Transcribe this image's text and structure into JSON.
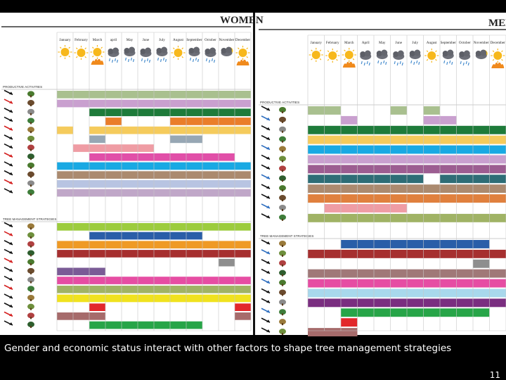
{
  "panels": {
    "women": {
      "title": "WOMEN",
      "months": [
        "January",
        "February",
        "March",
        "april",
        "May",
        "June",
        "July",
        "August",
        "September",
        "October",
        "November",
        "December"
      ]
    },
    "men": {
      "title": "MEN",
      "months": [
        "January",
        "February",
        "March",
        "April",
        "May",
        "June",
        "July",
        "August",
        "September",
        "October",
        "November",
        "December"
      ]
    }
  },
  "section_labels": {
    "productive": "PRODUCTIVE ACTIVITIES",
    "tree": "TREE MANAGEMENT STRATEGIES"
  },
  "weather": [
    "sun",
    "sun",
    "sun-fire",
    "rain",
    "rain",
    "rain",
    "rain",
    "sun",
    "rain",
    "rain",
    "cloud-sun",
    "sun-fire"
  ],
  "women_rows": {
    "productive": [
      {
        "color": "#a9c08f",
        "months": [
          1,
          2,
          3,
          4,
          5,
          6,
          7,
          8,
          9,
          10,
          11,
          12
        ]
      },
      {
        "color": "#c9a0cf",
        "months": [
          1,
          2,
          3,
          4,
          5,
          6,
          7,
          8,
          9,
          10,
          11,
          12
        ]
      },
      {
        "color": "#1e7b3a",
        "months": [
          3,
          4,
          5,
          6,
          7,
          8,
          9,
          10,
          11,
          12
        ]
      },
      {
        "color": "#ea7d2a",
        "months": [
          4,
          8,
          9,
          10,
          11,
          12
        ]
      },
      {
        "color": "#f5cb5c",
        "months": [
          1,
          3,
          4,
          5,
          6,
          7,
          8,
          9,
          10,
          11,
          12
        ]
      },
      {
        "color": "#97a7b4",
        "months": [
          3,
          8,
          9
        ]
      },
      {
        "color": "#ef9ca4",
        "months": [
          2,
          3,
          4,
          5,
          6
        ]
      },
      {
        "color": "#e14fa8",
        "months": [
          3,
          4,
          5,
          6,
          7,
          8,
          9,
          10,
          11
        ]
      },
      {
        "color": "#19a9e3",
        "months": [
          1,
          2,
          3,
          4,
          5,
          6,
          7,
          8,
          9,
          10,
          11,
          12
        ]
      },
      {
        "color": "#ab8a6f",
        "months": [
          1,
          2,
          3,
          4,
          5,
          6,
          7,
          8,
          9,
          10,
          11,
          12
        ]
      },
      {
        "color": "#b8c4e2",
        "months": [
          1,
          2,
          3,
          4,
          5,
          6,
          7,
          8,
          9,
          10,
          11,
          12
        ]
      },
      {
        "color": "#c0a7c8",
        "months": [
          1,
          2,
          3,
          4,
          5,
          6,
          7,
          8,
          9,
          10,
          11,
          12
        ]
      }
    ],
    "tree": [
      {
        "color": "#9ccc3d",
        "months": [
          1,
          2,
          3,
          4,
          5,
          6,
          7,
          8,
          9,
          10,
          11,
          12
        ]
      },
      {
        "color": "#2a5ea8",
        "months": [
          3,
          4,
          5,
          6,
          7,
          8,
          9
        ]
      },
      {
        "color": "#ef9a25",
        "months": [
          1,
          2,
          3,
          4,
          5,
          6,
          7,
          8,
          9,
          10,
          11,
          12
        ]
      },
      {
        "color": "#a62f2f",
        "months": [
          1,
          2,
          3,
          4,
          5,
          6,
          7,
          8,
          9,
          10,
          11,
          12
        ]
      },
      {
        "color": "#8e8e8e",
        "months": [
          11
        ]
      },
      {
        "color": "#7a5b96",
        "months": [
          1,
          2,
          3
        ]
      },
      {
        "color": "#e64da3",
        "months": [
          1,
          2,
          3,
          4,
          5,
          6,
          7,
          8,
          9,
          10,
          11,
          12
        ]
      },
      {
        "color": "#a0b365",
        "months": [
          1,
          2,
          3,
          4,
          5,
          6,
          7,
          8,
          9,
          10,
          11,
          12
        ]
      },
      {
        "color": "#f0e21f",
        "months": [
          1,
          2,
          3,
          4,
          5,
          6,
          7,
          8,
          9,
          10,
          11,
          12
        ]
      },
      {
        "color": "#e2282b",
        "months": [
          3,
          12
        ]
      },
      {
        "color": "#a66b6b",
        "months": [
          1,
          2,
          3,
          12
        ]
      },
      {
        "color": "#27a548",
        "months": [
          3,
          4,
          5,
          6,
          7,
          8,
          9
        ]
      }
    ]
  },
  "men_rows": {
    "productive": [
      {
        "color": "#a9c08f",
        "months": [
          1,
          2,
          6,
          8
        ]
      },
      {
        "color": "#c9a0cf",
        "months": [
          3,
          8,
          9
        ]
      },
      {
        "color": "#1e7b3a",
        "months": [
          1,
          2,
          3,
          4,
          5,
          6,
          7,
          8,
          9,
          10,
          11,
          12
        ]
      },
      {
        "color": "#f5cb5c",
        "months": [
          1,
          2,
          3,
          4,
          5,
          6,
          7,
          8,
          9,
          10,
          11,
          12
        ]
      },
      {
        "color": "#19a9e3",
        "months": [
          1,
          2,
          3,
          4,
          5,
          6,
          7,
          8,
          9,
          10,
          11,
          12
        ]
      },
      {
        "color": "#c9a0cf",
        "months": [
          1,
          2,
          3,
          4,
          5,
          6,
          7,
          8,
          9,
          10,
          11,
          12
        ]
      },
      {
        "color": "#9c5d91",
        "months": [
          1,
          2,
          3,
          4,
          5,
          6,
          7,
          8,
          9,
          10,
          11,
          12
        ]
      },
      {
        "color": "#2e6d76",
        "months": [
          1,
          2,
          3,
          4,
          5,
          6,
          7,
          9,
          10,
          11,
          12
        ]
      },
      {
        "color": "#ab8a6f",
        "months": [
          1,
          2,
          3,
          4,
          5,
          6,
          7,
          8,
          9,
          10,
          11,
          12
        ]
      },
      {
        "color": "#e0803e",
        "months": [
          1,
          2,
          3,
          4,
          5,
          6,
          7,
          8,
          9,
          10,
          11,
          12
        ]
      },
      {
        "color": "#ef9ca4",
        "months": [
          2,
          3,
          4,
          5,
          6
        ]
      },
      {
        "color": "#a0b365",
        "months": [
          1,
          2,
          3,
          4,
          5,
          6,
          7,
          8,
          9,
          10,
          11,
          12
        ]
      }
    ],
    "tree": [
      {
        "color": "#2a5ea8",
        "months": [
          3,
          4,
          5,
          6,
          7,
          8,
          9,
          10,
          11
        ]
      },
      {
        "color": "#a62f2f",
        "months": [
          1,
          2,
          3,
          4,
          5,
          6,
          7,
          8,
          9,
          10,
          11,
          12
        ]
      },
      {
        "color": "#8e8e8e",
        "months": [
          11
        ]
      },
      {
        "color": "#a07878",
        "months": [
          1,
          2,
          3,
          4,
          5,
          6,
          7,
          8,
          9,
          10,
          11,
          12
        ]
      },
      {
        "color": "#e64da3",
        "months": [
          1,
          2,
          3,
          4,
          5,
          6,
          7,
          8,
          9,
          10,
          11,
          12
        ]
      },
      {
        "color": "#a8d8ec",
        "months": [
          1,
          2,
          3,
          4,
          5,
          6,
          7,
          8,
          9,
          10,
          11,
          12
        ]
      },
      {
        "color": "#7a2e80",
        "months": [
          1,
          2,
          3,
          4,
          5,
          6,
          7,
          8,
          9,
          10,
          11,
          12
        ]
      },
      {
        "color": "#27a548",
        "months": [
          3,
          4,
          5,
          6,
          7,
          8,
          9,
          10,
          11
        ]
      },
      {
        "color": "#e2282b",
        "months": [
          3
        ]
      },
      {
        "color": "#a66b6b",
        "months": [
          1,
          2,
          3
        ]
      }
    ]
  },
  "caption": "Gender and  economic status interact with other factors to shape tree management strategies",
  "page_number": "11"
}
